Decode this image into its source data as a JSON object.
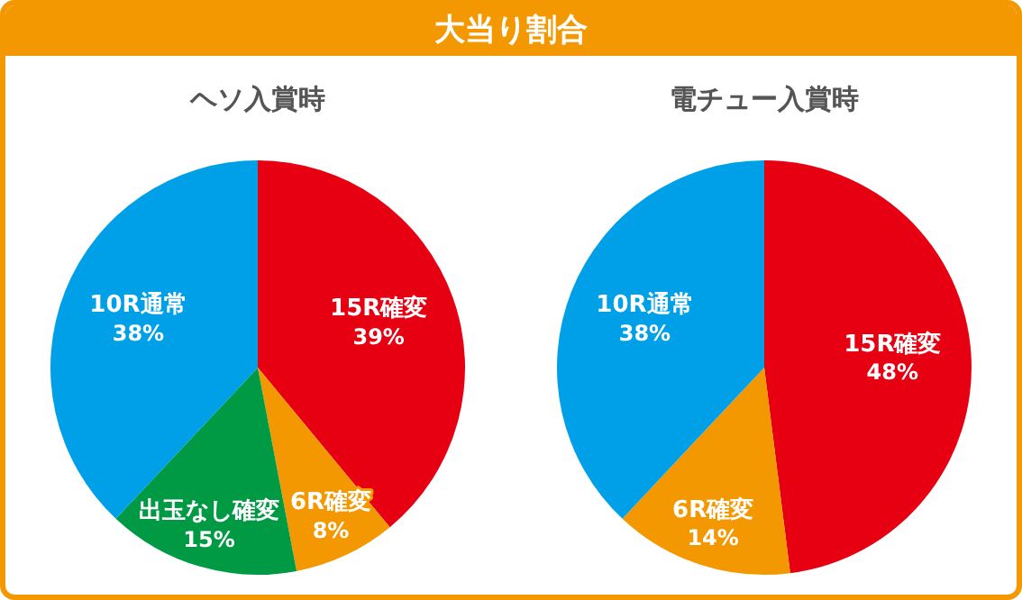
{
  "chart_data": [
    {
      "type": "other",
      "title": "大当り割合"
    },
    {
      "type": "pie",
      "title": "ヘソ入賞時",
      "categories": [
        "15R確変",
        "6R確変",
        "出玉なし確変",
        "10R通常"
      ],
      "values": [
        39,
        8,
        15,
        38
      ],
      "value_labels": [
        "39%",
        "8%",
        "15%",
        "38%"
      ],
      "colors": [
        "#e60012",
        "#f39800",
        "#009944",
        "#00a0e9"
      ],
      "legend": false
    },
    {
      "type": "pie",
      "title": "電チュー入賞時",
      "categories": [
        "15R確変",
        "6R確変",
        "10R通常"
      ],
      "values": [
        48,
        14,
        38
      ],
      "value_labels": [
        "48%",
        "14%",
        "38%"
      ],
      "colors": [
        "#e60012",
        "#f39800",
        "#00a0e9"
      ],
      "legend": false
    }
  ]
}
